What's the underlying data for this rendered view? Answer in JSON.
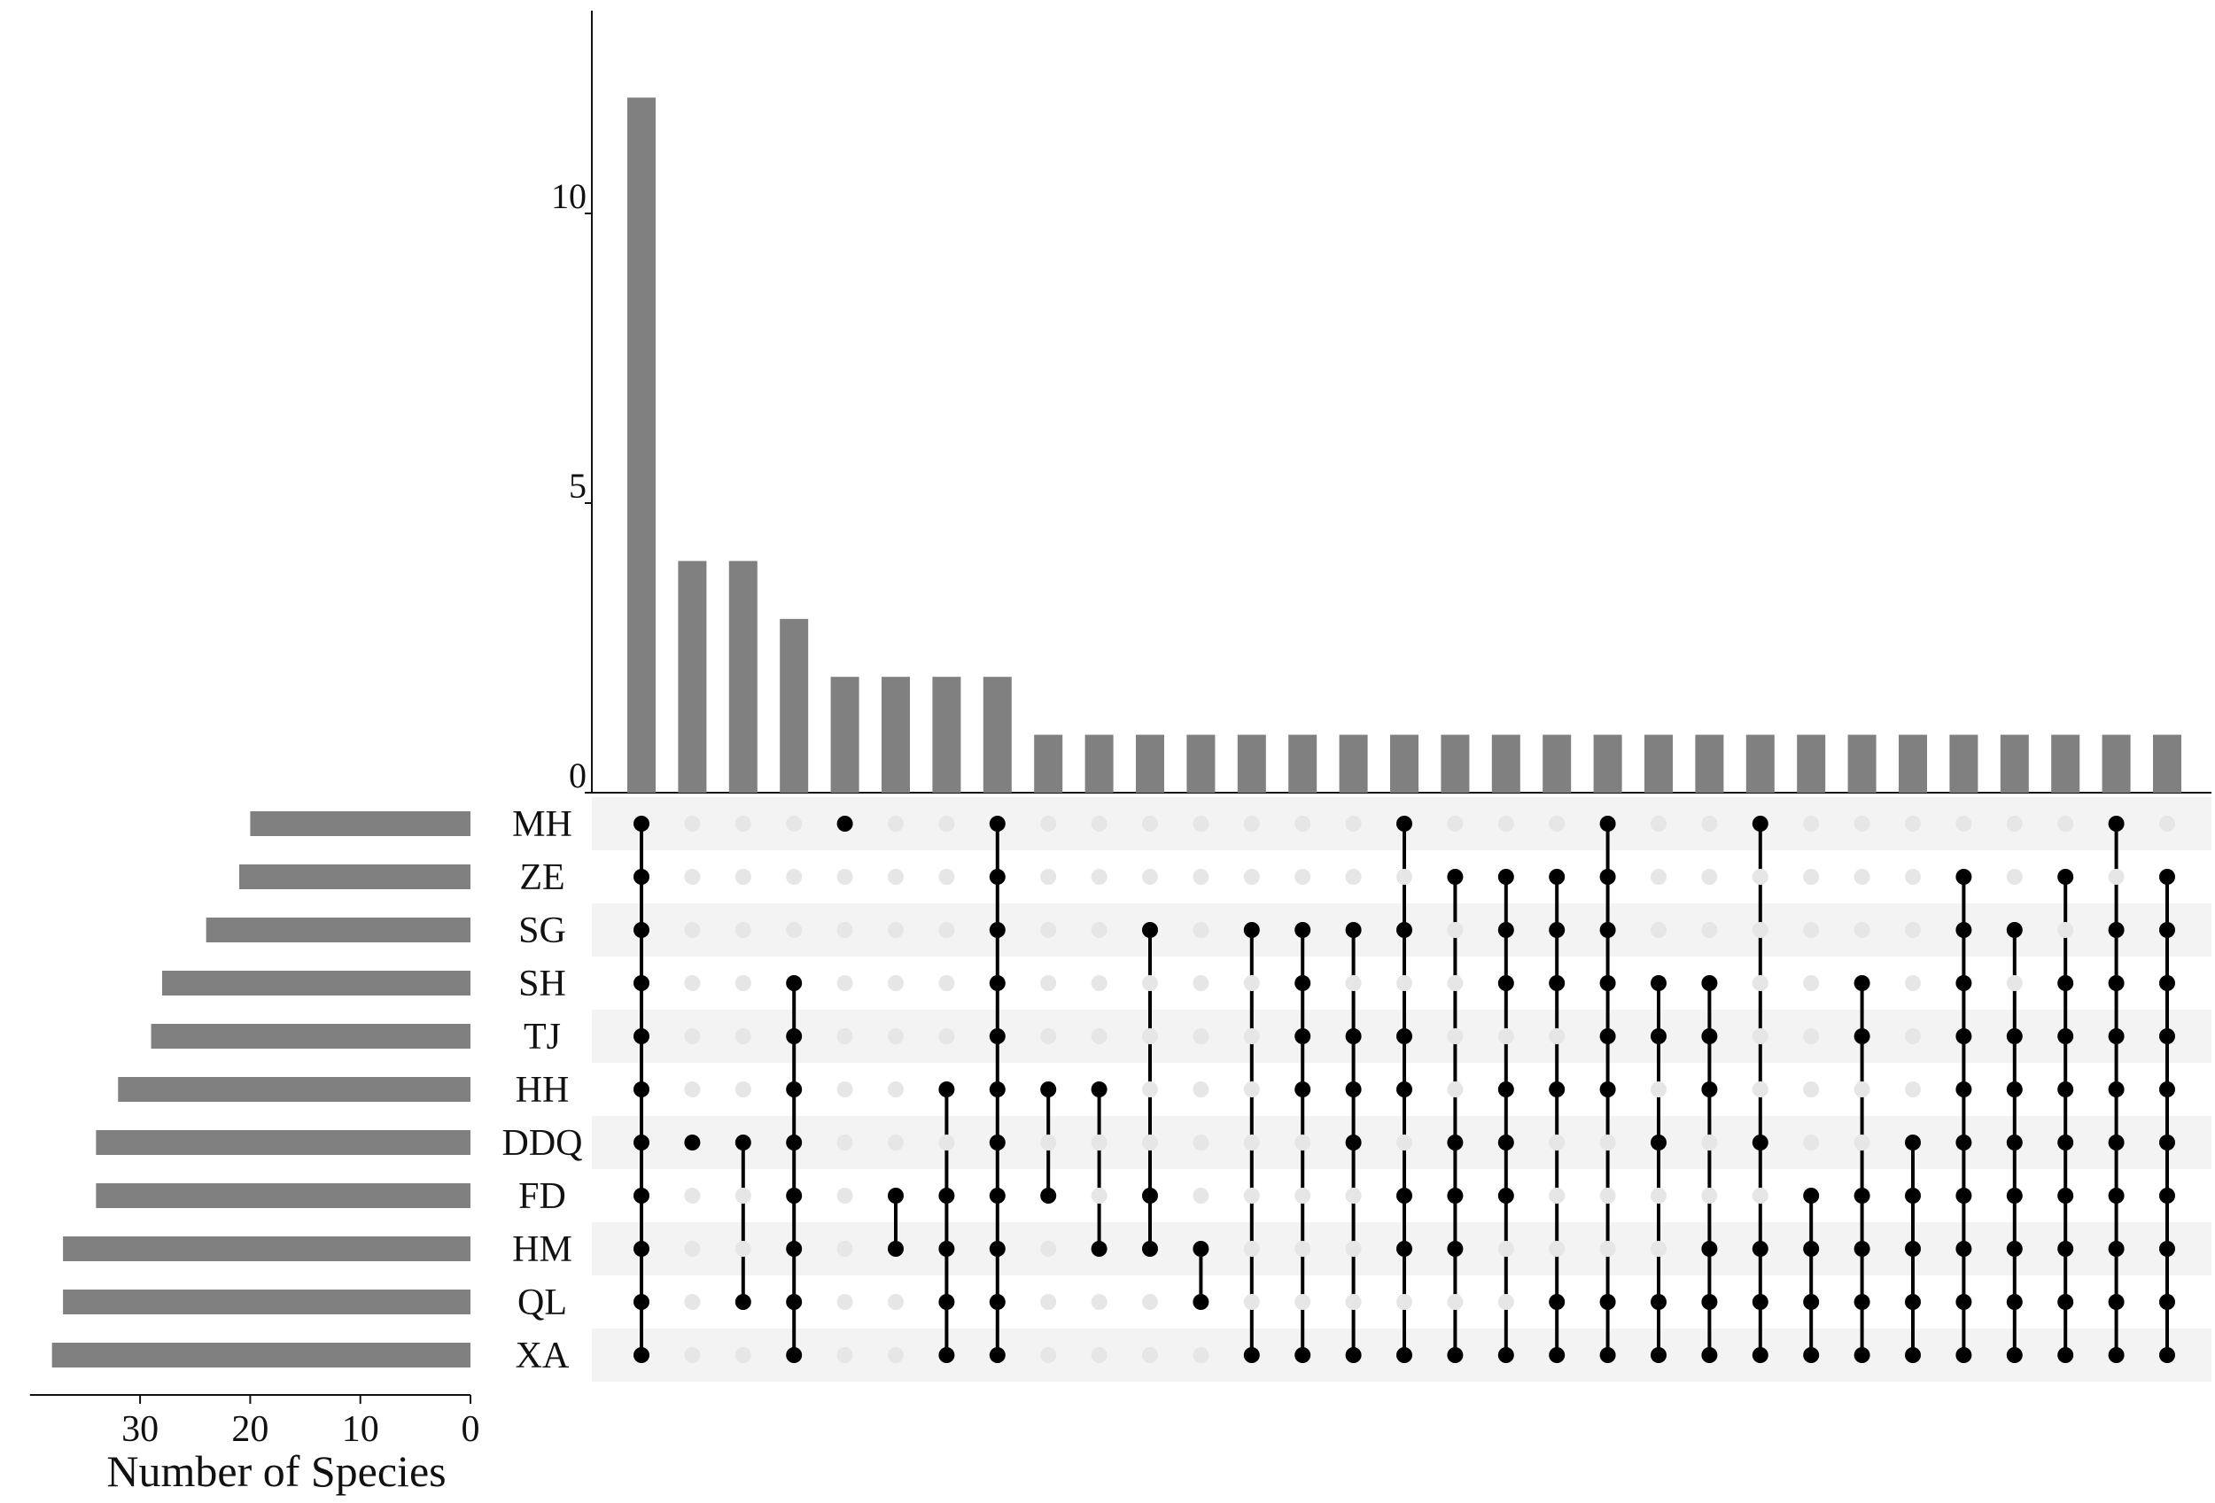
{
  "chart_data": {
    "type": "upset",
    "sets": [
      "MH",
      "ZE",
      "SG",
      "SH",
      "TJ",
      "HH",
      "DDQ",
      "FD",
      "HM",
      "QL",
      "XA"
    ],
    "set_sizes": [
      20,
      21,
      24,
      28,
      29,
      32,
      34,
      34,
      37,
      37,
      38
    ],
    "set_size_axis": {
      "label": "Number of Species",
      "ticks": [
        30,
        20,
        10,
        0
      ],
      "range": [
        0,
        40
      ]
    },
    "intersection_axis": {
      "label": "",
      "ticks": [
        0,
        5,
        10
      ],
      "range": [
        0,
        14
      ]
    },
    "intersections": [
      {
        "size": 12,
        "sets": [
          "MH",
          "ZE",
          "SG",
          "SH",
          "TJ",
          "HH",
          "DDQ",
          "FD",
          "HM",
          "QL",
          "XA"
        ]
      },
      {
        "size": 4,
        "sets": [
          "DDQ"
        ]
      },
      {
        "size": 4,
        "sets": [
          "DDQ",
          "QL"
        ]
      },
      {
        "size": 3,
        "sets": [
          "SH",
          "TJ",
          "HH",
          "DDQ",
          "FD",
          "HM",
          "QL",
          "XA"
        ]
      },
      {
        "size": 2,
        "sets": [
          "MH"
        ]
      },
      {
        "size": 2,
        "sets": [
          "FD",
          "HM"
        ]
      },
      {
        "size": 2,
        "sets": [
          "HH",
          "FD",
          "HM",
          "QL",
          "XA"
        ]
      },
      {
        "size": 2,
        "sets": [
          "MH",
          "ZE",
          "SG",
          "SH",
          "TJ",
          "HH",
          "DDQ",
          "FD",
          "HM",
          "QL",
          "XA"
        ]
      },
      {
        "size": 1,
        "sets": [
          "HH",
          "FD"
        ]
      },
      {
        "size": 1,
        "sets": [
          "HH",
          "HM"
        ]
      },
      {
        "size": 1,
        "sets": [
          "SG",
          "FD",
          "HM"
        ]
      },
      {
        "size": 1,
        "sets": [
          "HM",
          "QL"
        ]
      },
      {
        "size": 1,
        "sets": [
          "SG",
          "XA"
        ]
      },
      {
        "size": 1,
        "sets": [
          "SG",
          "SH",
          "TJ",
          "HH",
          "XA"
        ]
      },
      {
        "size": 1,
        "sets": [
          "SG",
          "TJ",
          "HH",
          "DDQ",
          "XA"
        ]
      },
      {
        "size": 1,
        "sets": [
          "MH",
          "SG",
          "TJ",
          "HH",
          "FD",
          "HM",
          "XA"
        ]
      },
      {
        "size": 1,
        "sets": [
          "ZE",
          "DDQ",
          "FD",
          "HM",
          "XA"
        ]
      },
      {
        "size": 1,
        "sets": [
          "ZE",
          "SG",
          "SH",
          "HH",
          "DDQ",
          "FD",
          "XA"
        ]
      },
      {
        "size": 1,
        "sets": [
          "ZE",
          "SG",
          "SH",
          "HH",
          "QL",
          "XA"
        ]
      },
      {
        "size": 1,
        "sets": [
          "MH",
          "ZE",
          "SG",
          "SH",
          "TJ",
          "HH",
          "QL",
          "XA"
        ]
      },
      {
        "size": 1,
        "sets": [
          "SH",
          "TJ",
          "DDQ",
          "QL",
          "XA"
        ]
      },
      {
        "size": 1,
        "sets": [
          "SH",
          "TJ",
          "HH",
          "HM",
          "QL",
          "XA"
        ]
      },
      {
        "size": 1,
        "sets": [
          "MH",
          "DDQ",
          "HM",
          "QL",
          "XA"
        ]
      },
      {
        "size": 1,
        "sets": [
          "FD",
          "HM",
          "QL",
          "XA"
        ]
      },
      {
        "size": 1,
        "sets": [
          "SH",
          "TJ",
          "FD",
          "HM",
          "QL",
          "XA"
        ]
      },
      {
        "size": 1,
        "sets": [
          "DDQ",
          "FD",
          "HM",
          "QL",
          "XA"
        ]
      },
      {
        "size": 1,
        "sets": [
          "ZE",
          "SG",
          "SH",
          "TJ",
          "HH",
          "DDQ",
          "FD",
          "HM",
          "QL",
          "XA"
        ]
      },
      {
        "size": 1,
        "sets": [
          "SG",
          "TJ",
          "HH",
          "DDQ",
          "FD",
          "HM",
          "QL",
          "XA"
        ]
      },
      {
        "size": 1,
        "sets": [
          "ZE",
          "SH",
          "TJ",
          "HH",
          "DDQ",
          "FD",
          "HM",
          "QL",
          "XA"
        ]
      },
      {
        "size": 1,
        "sets": [
          "MH",
          "SG",
          "SH",
          "TJ",
          "HH",
          "DDQ",
          "FD",
          "HM",
          "QL",
          "XA"
        ]
      },
      {
        "size": 1,
        "sets": [
          "ZE",
          "SG",
          "SH",
          "TJ",
          "HH",
          "DDQ",
          "FD",
          "HM",
          "QL",
          "XA"
        ]
      }
    ],
    "colors": {
      "bar": "#808080",
      "dot_active": "#000000",
      "dot_inactive": "#e6e6e6",
      "row_shade": "#f3f3f3",
      "axis": "#111111"
    }
  }
}
